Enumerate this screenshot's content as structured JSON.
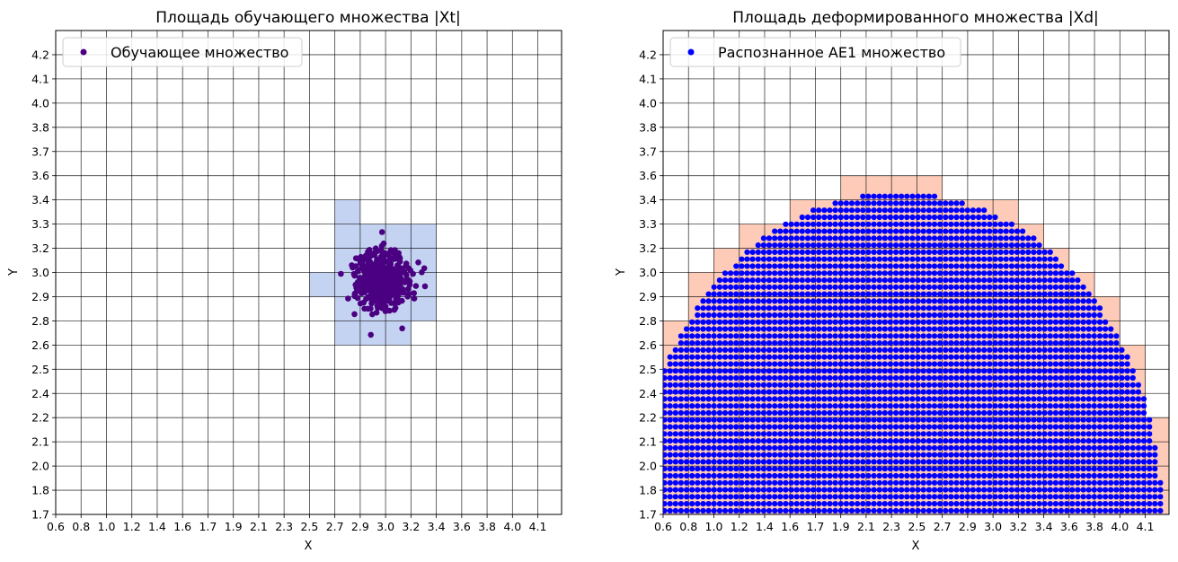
{
  "chart_data": [
    {
      "type": "scatter",
      "title": "Площадь обучающего множества |Xt|",
      "xlabel": "X",
      "ylabel": "Y",
      "xlim": [
        0.6,
        4.28
      ],
      "ylim": [
        1.7,
        4.33
      ],
      "grid": true,
      "x_tick_labels": [
        "0.6",
        "0.8",
        "1.0",
        "1.2",
        "1.4",
        "1.6",
        "1.7",
        "1.9",
        "2.1",
        "2.3",
        "2.5",
        "2.7",
        "2.9",
        "3.0",
        "3.2",
        "3.4",
        "3.6",
        "3.8",
        "4.0",
        "4.1"
      ],
      "y_tick_labels": [
        "1.7",
        "1.8",
        "2.0",
        "2.1",
        "2.2",
        "2.4",
        "2.5",
        "2.6",
        "2.8",
        "2.9",
        "3.0",
        "3.2",
        "3.3",
        "3.4",
        "3.6",
        "3.7",
        "3.8",
        "4.0",
        "4.1",
        "4.2"
      ],
      "legend": {
        "label": "Обучающее множество",
        "placement": "upper-left"
      },
      "point_color": "#4b0082",
      "cell_color": "#c5d3f3",
      "highlighted_cells_lower_left": [
        [
          "2.7",
          "3.3"
        ],
        [
          "2.7",
          "3.2"
        ],
        [
          "2.9",
          "3.2"
        ],
        [
          "3.0",
          "3.2"
        ],
        [
          "3.2",
          "3.2"
        ],
        [
          "2.7",
          "3.0"
        ],
        [
          "2.9",
          "3.0"
        ],
        [
          "3.0",
          "3.0"
        ],
        [
          "3.2",
          "3.0"
        ],
        [
          "2.5",
          "2.9"
        ],
        [
          "2.7",
          "2.9"
        ],
        [
          "2.9",
          "2.9"
        ],
        [
          "3.0",
          "2.9"
        ],
        [
          "3.2",
          "2.9"
        ],
        [
          "2.7",
          "2.8"
        ],
        [
          "2.9",
          "2.8"
        ],
        [
          "3.0",
          "2.8"
        ],
        [
          "3.2",
          "2.8"
        ],
        [
          "2.7",
          "2.6"
        ],
        [
          "2.9",
          "2.6"
        ],
        [
          "3.0",
          "2.6"
        ]
      ],
      "points_distribution": {
        "kind": "gaussian",
        "center": [
          2.97,
          2.98
        ],
        "std": [
          0.095,
          0.08
        ],
        "count": 500
      }
    },
    {
      "type": "scatter",
      "title": "Площадь деформированного множества |Xd|",
      "xlabel": "X",
      "ylabel": "Y",
      "xlim": [
        0.6,
        4.28
      ],
      "ylim": [
        1.7,
        4.33
      ],
      "grid": true,
      "x_tick_labels": [
        "0.6",
        "0.8",
        "1.0",
        "1.2",
        "1.4",
        "1.6",
        "1.7",
        "1.9",
        "2.1",
        "2.3",
        "2.5",
        "2.7",
        "2.9",
        "3.0",
        "3.2",
        "3.4",
        "3.6",
        "3.8",
        "4.0",
        "4.1"
      ],
      "y_tick_labels": [
        "1.7",
        "1.8",
        "2.0",
        "2.1",
        "2.2",
        "2.4",
        "2.5",
        "2.6",
        "2.8",
        "2.9",
        "3.0",
        "3.2",
        "3.3",
        "3.4",
        "3.6",
        "3.7",
        "3.8",
        "4.0",
        "4.1",
        "4.2"
      ],
      "legend": {
        "label": "Распознанное AE1 множество",
        "placement": "upper-left"
      },
      "point_color": "#0000ff",
      "cell_color": "#fdcbb7",
      "points_distribution": {
        "kind": "lattice-in-half-ellipse",
        "center": [
          2.31,
          1.7
        ],
        "semi_axes": [
          1.91,
          1.75
        ],
        "step": [
          0.04,
          0.038
        ]
      }
    }
  ]
}
